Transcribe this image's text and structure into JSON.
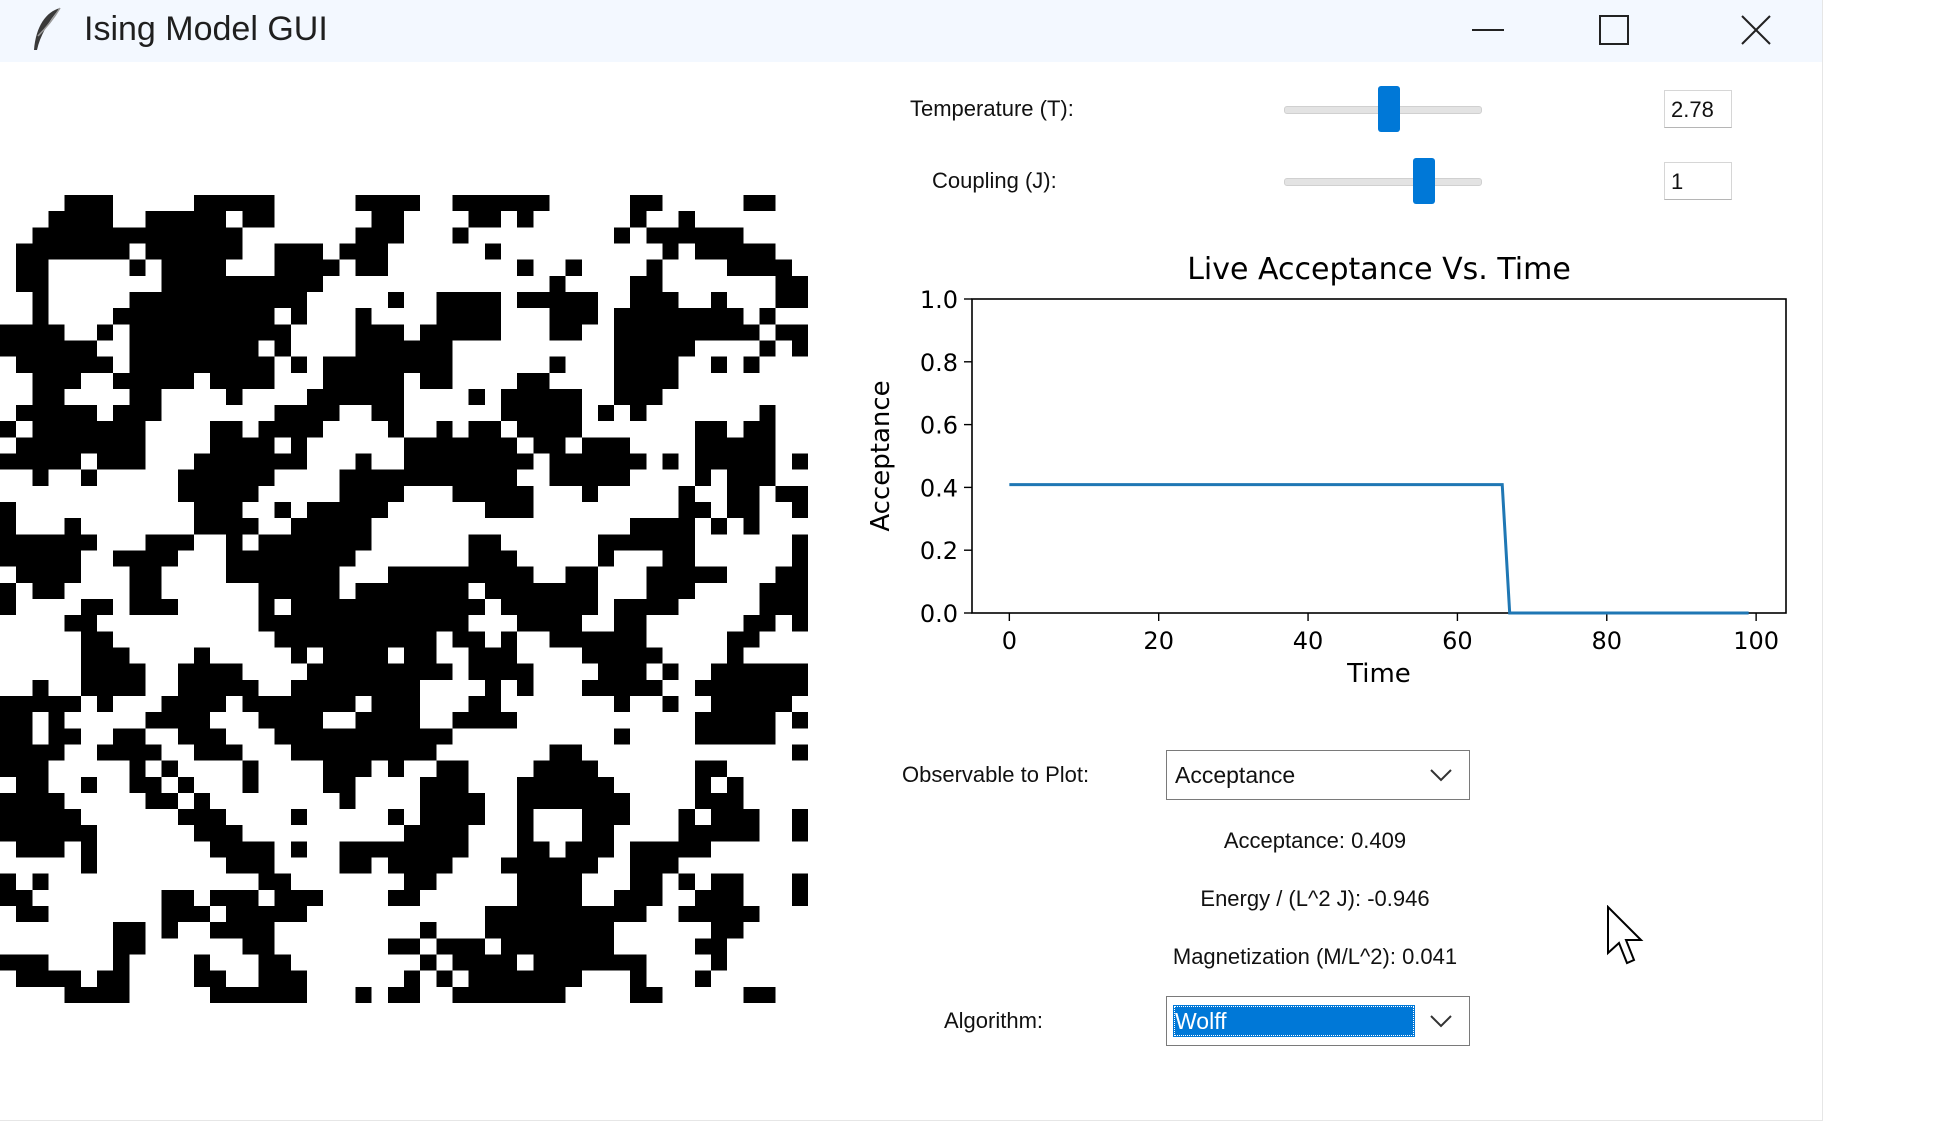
{
  "window": {
    "title": "Ising Model GUI",
    "icon": "feather-icon"
  },
  "controls": {
    "temperature": {
      "label": "Temperature (T):",
      "value": "2.78",
      "slider_fraction": 0.53
    },
    "coupling": {
      "label": "Coupling (J):",
      "value": "1",
      "slider_fraction": 0.71
    }
  },
  "chart_data": {
    "type": "line",
    "title": "Live Acceptance Vs. Time",
    "xlabel": "Time",
    "ylabel": "Acceptance",
    "xlim": [
      -5,
      104
    ],
    "ylim": [
      0.0,
      1.0
    ],
    "xticks": [
      "0",
      "20",
      "40",
      "60",
      "80",
      "100"
    ],
    "yticks": [
      "0.0",
      "0.2",
      "0.4",
      "0.6",
      "0.8",
      "1.0"
    ],
    "grid": false,
    "series": [
      {
        "color": "#1f77b4",
        "x": [
          0,
          66,
          67,
          99
        ],
        "y": [
          0.409,
          0.409,
          0.0,
          0.0
        ]
      }
    ]
  },
  "observable": {
    "label": "Observable to Plot:",
    "selected": "Acceptance"
  },
  "readouts": {
    "acceptance": "Acceptance: 0.409",
    "energy": "Energy / (L^2 J): -0.946",
    "magnetization": "Magnetization (M/L^2): 0.041"
  },
  "algorithm": {
    "label": "Algorithm:",
    "selected": "Wolff"
  },
  "lattice": {
    "size": 50,
    "spin_colors": {
      "up": "#000000",
      "down": "#ffffff"
    }
  },
  "colors": {
    "accent": "#0078d7",
    "plot_line": "#1f77b4"
  }
}
